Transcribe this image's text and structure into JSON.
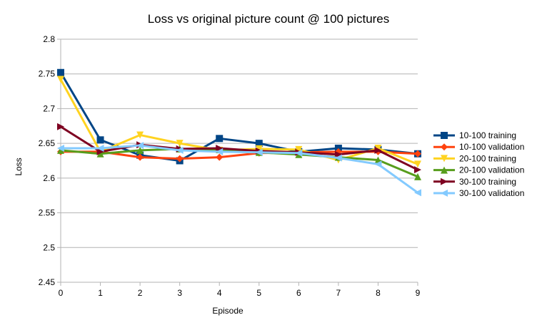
{
  "chart_data": {
    "type": "line",
    "title": "Loss vs original picture count @ 100 pictures",
    "xlabel": "Episode",
    "ylabel": "Loss",
    "x": [
      0,
      1,
      2,
      3,
      4,
      5,
      6,
      7,
      8,
      9
    ],
    "ylim": [
      2.45,
      2.8
    ],
    "yticks": [
      "2.45",
      "2.5",
      "2.55",
      "2.6",
      "2.65",
      "2.7",
      "2.75",
      "2.8"
    ],
    "grid": "horizontal",
    "legend_position": "right",
    "series": [
      {
        "name": "10-100 training",
        "color": "#004586",
        "marker": "square",
        "values": [
          2.752,
          2.655,
          2.633,
          2.625,
          2.657,
          2.65,
          2.638,
          2.643,
          2.641,
          2.635
        ]
      },
      {
        "name": "10-100 validation",
        "color": "#ff420e",
        "marker": "diamond",
        "values": [
          2.638,
          2.638,
          2.63,
          2.628,
          2.63,
          2.636,
          2.637,
          2.638,
          2.638,
          2.635
        ]
      },
      {
        "name": "20-100 training",
        "color": "#ffd320",
        "marker": "triangle-down",
        "values": [
          2.742,
          2.638,
          2.662,
          2.65,
          2.64,
          2.642,
          2.641,
          2.626,
          2.643,
          2.62
        ]
      },
      {
        "name": "20-100 validation",
        "color": "#579d1c",
        "marker": "triangle-up",
        "values": [
          2.64,
          2.635,
          2.64,
          2.642,
          2.641,
          2.637,
          2.634,
          2.63,
          2.626,
          2.602
        ]
      },
      {
        "name": "30-100 training",
        "color": "#7e0021",
        "marker": "triangle-right",
        "values": [
          2.674,
          2.638,
          2.648,
          2.642,
          2.643,
          2.639,
          2.637,
          2.634,
          2.64,
          2.612
        ]
      },
      {
        "name": "30-100 validation",
        "color": "#83caff",
        "marker": "triangle-left",
        "values": [
          2.643,
          2.643,
          2.647,
          2.64,
          2.638,
          2.637,
          2.636,
          2.629,
          2.62,
          2.579
        ]
      }
    ]
  }
}
